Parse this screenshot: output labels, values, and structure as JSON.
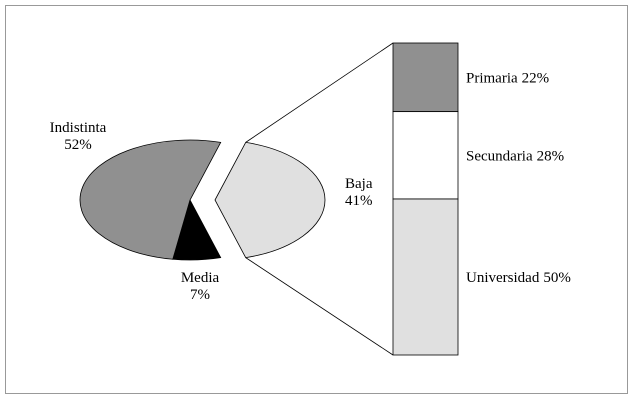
{
  "chart_data": {
    "type": "pie",
    "categories": [
      "Baja",
      "Media",
      "Indistinta"
    ],
    "values": [
      41,
      7,
      52
    ],
    "value_labels": [
      "41%",
      "7%",
      "52%"
    ],
    "colors": [
      "#e0e0e0",
      "#000000",
      "#909090"
    ],
    "breakdown": {
      "categories": [
        "Primaria",
        "Secundaria",
        "Universidad"
      ],
      "values": [
        22,
        28,
        50
      ],
      "value_labels": [
        "22%",
        "28%",
        "50%"
      ],
      "colors": [
        "#909090",
        "#ffffff",
        "#e0e0e0"
      ]
    }
  }
}
